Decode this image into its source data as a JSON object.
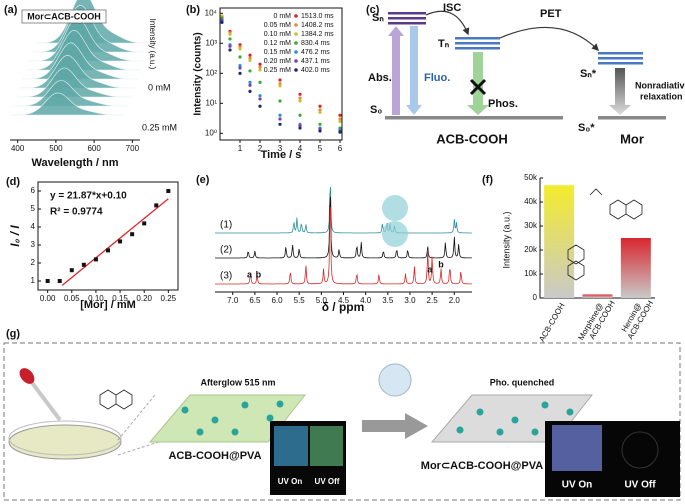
{
  "chart_data": [
    {
      "type": "waterfall",
      "panel": "(a)",
      "label": "Mor⊂ACB-COOH",
      "y_label": "Intensity (a.u.)",
      "x_label": "Wavelength / nm",
      "annotations": [
        "0 mM",
        "0.25 mM"
      ],
      "xlim": [
        380,
        720
      ],
      "xticks": [
        400,
        500,
        600,
        700
      ],
      "color": "#5fa8a8"
    },
    {
      "type": "decay",
      "panel": "(b)",
      "x_label": "Time / s",
      "y_label": "Intensity (counts)",
      "log_y": true,
      "xlim": [
        0,
        6.1
      ],
      "xticks": [
        1,
        2,
        3,
        4,
        5,
        6
      ],
      "ylim": [
        0.6,
        15000
      ],
      "yticks": [
        {
          "value": 1,
          "label": "10⁰"
        },
        {
          "value": 10,
          "label": "10¹"
        },
        {
          "value": 100,
          "label": "10²"
        },
        {
          "value": 1000,
          "label": "10³"
        },
        {
          "value": 10000,
          "label": "10⁴"
        }
      ],
      "x": [
        0.1,
        0.5,
        1,
        1.5,
        2,
        3,
        4,
        5,
        6
      ],
      "series": [
        {
          "name": "0 mM",
          "lifetime": "1513.0 ms",
          "color": "#d62728",
          "values": [
            8000,
            2500,
            900,
            400,
            200,
            60,
            20,
            8,
            4
          ]
        },
        {
          "name": "0.05 mM",
          "lifetime": "1408.2 ms",
          "color": "#f0883a",
          "values": [
            8000,
            2200,
            750,
            320,
            160,
            45,
            15,
            6,
            3
          ]
        },
        {
          "name": "0.10 mM",
          "lifetime": "1384.2 ms",
          "color": "#c6c22a",
          "values": [
            8000,
            2000,
            650,
            270,
            130,
            38,
            12,
            5,
            2.5
          ]
        },
        {
          "name": "0.12 mM",
          "lifetime": "830.4 ms",
          "color": "#3aa835",
          "values": [
            7000,
            1400,
            350,
            120,
            50,
            12,
            4,
            2,
            1.5
          ]
        },
        {
          "name": "0.15 mM",
          "lifetime": "476.2 ms",
          "color": "#2b8fd6",
          "values": [
            6000,
            900,
            180,
            50,
            18,
            4,
            2,
            1.5,
            1.3
          ]
        },
        {
          "name": "0.20 mM",
          "lifetime": "437.1 ms",
          "color": "#7b3fb0",
          "values": [
            6000,
            800,
            150,
            40,
            14,
            3,
            1.8,
            1.4,
            1.2
          ]
        },
        {
          "name": "0.25 mM",
          "lifetime": "402.0 ms",
          "color": "#1c2a6e",
          "values": [
            5000,
            600,
            100,
            25,
            8,
            2,
            1.5,
            1.2,
            1.1
          ]
        }
      ]
    },
    {
      "type": "scatter_fit",
      "panel": "(d)",
      "x_label": "[Mor] / mM",
      "y_label": "I₀ / I",
      "equation": "y = 21.87*x+0.10",
      "r_squared": "R² = 0.9774",
      "xlim": [
        -0.02,
        0.27
      ],
      "xticks": [
        {
          "value": 0,
          "label": "0.00"
        },
        0.05,
        {
          "value": 0.1,
          "label": "0.10"
        },
        0.15,
        {
          "value": 0.2,
          "label": "0.20"
        },
        0.25
      ],
      "ylim": [
        0.5,
        6.5
      ],
      "yticks": [
        1,
        2,
        3,
        4,
        5,
        6
      ],
      "x": [
        0,
        0.025,
        0.05,
        0.075,
        0.1,
        0.125,
        0.15,
        0.175,
        0.2,
        0.225,
        0.25
      ],
      "values": [
        1.0,
        1.0,
        1.6,
        1.9,
        2.2,
        2.7,
        3.2,
        3.6,
        4.2,
        5.2,
        6.0
      ],
      "color": "#111111",
      "fit": {
        "x": [
          0.03,
          0.25
        ],
        "values": [
          0.76,
          5.57
        ],
        "color": "#e0262b"
      }
    },
    {
      "type": "nmr",
      "panel": "(e)",
      "x_label": "δ / ppm",
      "trace_labels": [
        "(1)",
        "(2)",
        "(3)"
      ],
      "peak_labels": [
        "a",
        "b",
        "a",
        "b"
      ],
      "trace_colors": [
        "#2f8f9a",
        "#111111",
        "#d42a2a"
      ],
      "xlim": [
        7.4,
        1.6
      ],
      "xticks": [
        {
          "value": 7,
          "label": "7.0"
        },
        6.5,
        {
          "value": 6,
          "label": "6.0"
        },
        5.5,
        {
          "value": 5,
          "label": "5.0"
        },
        4.5,
        {
          "value": 4,
          "label": "4.0"
        },
        3.5,
        {
          "value": 3,
          "label": "3.0"
        },
        2.5,
        {
          "value": 2,
          "label": "2.0"
        }
      ]
    },
    {
      "type": "bar",
      "panel": "(f)",
      "y_label": "Intensity (a.u.)",
      "categories": [
        "ACB-COOH",
        "Morphine@ ACB-COOH",
        "Heroin@ ACB-COOH"
      ],
      "values": [
        47000,
        1500,
        25000
      ],
      "colors": [
        "#f4ec2c",
        "#e0333a",
        "#d8262d"
      ],
      "ylim": [
        0,
        50000
      ],
      "yticks": [
        0,
        {
          "value": 10000,
          "label": "10k"
        },
        {
          "value": 20000,
          "label": "20k"
        },
        {
          "value": 30000,
          "label": "30k"
        },
        {
          "value": 40000,
          "label": "40k"
        },
        {
          "value": 50000,
          "label": "50k"
        }
      ]
    }
  ],
  "energy_diagram": {
    "panel": "(c)",
    "levels": [
      "Sₙ",
      "Tₙ",
      "Sₙ*",
      "S₀",
      "S₀*"
    ],
    "processes": [
      "ISC",
      "PET",
      "Abs.",
      "Fluo.",
      "Phos."
    ],
    "nonradiative": [
      "Nonradiative",
      "relaxation"
    ],
    "species": [
      "ACB-COOH",
      "Mor"
    ]
  },
  "scheme": {
    "panel": "(g)",
    "film1_title": "Afterglow 515 nm",
    "film1_label": "ACB-COOH@PVA",
    "film2_title": "Pho. quenched",
    "film2_label": "Mor⊂ACB-COOH@PVA",
    "photo_labels": [
      "UV On",
      "UV Off",
      "UV On",
      "UV Off"
    ]
  }
}
